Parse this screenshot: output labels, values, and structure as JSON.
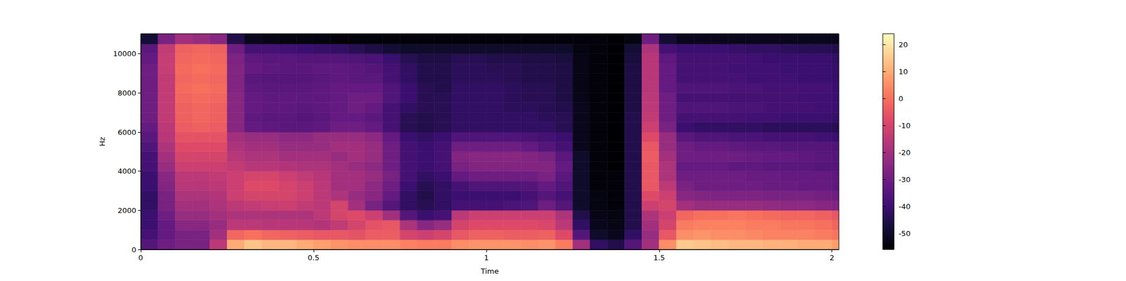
{
  "chart_data": {
    "type": "heatmap",
    "x_label": "Time",
    "y_label": "Hz",
    "xlim": [
      0,
      2.02
    ],
    "ylim": [
      0,
      11025
    ],
    "xticks": [
      0,
      0.5,
      1,
      1.5,
      2
    ],
    "yticks": [
      0,
      2000,
      4000,
      6000,
      8000,
      10000
    ],
    "x_bins": [
      0,
      0.05,
      0.1,
      0.15,
      0.2,
      0.25,
      0.3,
      0.35,
      0.4,
      0.45,
      0.5,
      0.55,
      0.6,
      0.65,
      0.7,
      0.75,
      0.8,
      0.85,
      0.9,
      0.95,
      1.0,
      1.05,
      1.1,
      1.15,
      1.2,
      1.25,
      1.3,
      1.35,
      1.4,
      1.45,
      1.5,
      1.55,
      1.6,
      1.65,
      1.7,
      1.75,
      1.8,
      1.85,
      1.9,
      1.95,
      2.0,
      2.02
    ],
    "y_bins": [
      0,
      500,
      1000,
      1500,
      2000,
      2500,
      3000,
      3500,
      4000,
      4500,
      5000,
      5500,
      6000,
      6500,
      7000,
      7500,
      8000,
      8500,
      9000,
      9500,
      10000,
      10500,
      11025
    ],
    "cells": [
      [
        -35,
        -30,
        -28,
        -28,
        -15,
        10,
        14,
        12,
        12,
        10,
        8,
        6,
        5,
        5,
        5,
        3,
        2,
        2,
        5,
        6,
        6,
        6,
        5,
        6,
        2,
        -20,
        -42,
        -45,
        -35,
        -20,
        5,
        15,
        14,
        13,
        12,
        12,
        11,
        11,
        10,
        10,
        8
      ],
      [
        -38,
        -32,
        -28,
        -28,
        -20,
        -2,
        0,
        -2,
        -3,
        -4,
        -5,
        -5,
        -6,
        -4,
        -4,
        -10,
        -12,
        -10,
        -5,
        -3,
        -3,
        -4,
        -4,
        -3,
        -8,
        -35,
        -50,
        -52,
        -42,
        -22,
        -5,
        5,
        6,
        5,
        5,
        4,
        3,
        3,
        3,
        2,
        1
      ],
      [
        -40,
        -32,
        -25,
        -25,
        -22,
        -15,
        -15,
        -16,
        -16,
        -16,
        -17,
        -14,
        -10,
        -6,
        -5,
        -18,
        -25,
        -22,
        -10,
        -8,
        -8,
        -8,
        -8,
        -9,
        -15,
        -42,
        -52,
        -53,
        -45,
        -20,
        -10,
        2,
        3,
        3,
        3,
        2,
        2,
        1,
        1,
        0,
        -2
      ],
      [
        -40,
        -30,
        -22,
        -22,
        -20,
        -18,
        -18,
        -18,
        -18,
        -18,
        -15,
        -10,
        -8,
        -12,
        -20,
        -35,
        -40,
        -38,
        -15,
        -12,
        -12,
        -12,
        -12,
        -12,
        -18,
        -45,
        -53,
        -54,
        -45,
        -18,
        -12,
        -2,
        0,
        0,
        1,
        0,
        -1,
        -2,
        -2,
        -3,
        -5
      ],
      [
        -42,
        -28,
        -20,
        -20,
        -18,
        -15,
        -14,
        -13,
        -12,
        -14,
        -15,
        -10,
        -20,
        -28,
        -35,
        -42,
        -44,
        -42,
        -38,
        -38,
        -38,
        -37,
        -36,
        -30,
        -35,
        -50,
        -54,
        -55,
        -45,
        -12,
        -10,
        -20,
        -22,
        -22,
        -22,
        -22,
        -23,
        -24,
        -24,
        -25,
        -26
      ],
      [
        -42,
        -28,
        -18,
        -18,
        -17,
        -12,
        -10,
        -10,
        -10,
        -12,
        -15,
        -18,
        -22,
        -25,
        -32,
        -42,
        -45,
        -42,
        -40,
        -40,
        -40,
        -40,
        -38,
        -35,
        -38,
        -50,
        -54,
        -55,
        -45,
        -8,
        -12,
        -25,
        -26,
        -27,
        -27,
        -27,
        -28,
        -28,
        -28,
        -29,
        -30
      ],
      [
        -40,
        -26,
        -16,
        -16,
        -15,
        -12,
        -8,
        -8,
        -10,
        -12,
        -15,
        -20,
        -20,
        -24,
        -30,
        -40,
        -44,
        -42,
        -38,
        -36,
        -36,
        -36,
        -35,
        -32,
        -36,
        -50,
        -55,
        -55,
        -45,
        -5,
        -15,
        -28,
        -30,
        -30,
        -30,
        -30,
        -31,
        -31,
        -32,
        -32,
        -33
      ],
      [
        -40,
        -25,
        -15,
        -15,
        -14,
        -12,
        -10,
        -10,
        -12,
        -14,
        -16,
        -20,
        -20,
        -22,
        -28,
        -38,
        -42,
        -40,
        -32,
        -30,
        -30,
        -30,
        -30,
        -28,
        -34,
        -50,
        -55,
        -55,
        -45,
        -5,
        -18,
        -30,
        -30,
        -30,
        -30,
        -31,
        -31,
        -32,
        -32,
        -32,
        -33
      ],
      [
        -38,
        -22,
        -12,
        -12,
        -12,
        -14,
        -16,
        -16,
        -17,
        -18,
        -18,
        -20,
        -22,
        -24,
        -30,
        -38,
        -40,
        -38,
        -28,
        -26,
        -26,
        -26,
        -26,
        -26,
        -32,
        -50,
        -55,
        -56,
        -45,
        -5,
        -18,
        -32,
        -32,
        -32,
        -33,
        -33,
        -34,
        -34,
        -34,
        -35,
        -35
      ],
      [
        -38,
        -20,
        -10,
        -10,
        -10,
        -16,
        -18,
        -18,
        -20,
        -20,
        -20,
        -22,
        -20,
        -22,
        -30,
        -38,
        -40,
        -38,
        -26,
        -25,
        -25,
        -25,
        -26,
        -28,
        -34,
        -50,
        -55,
        -56,
        -45,
        -4,
        -20,
        -30,
        -30,
        -30,
        -30,
        -31,
        -32,
        -32,
        -33,
        -34,
        -35
      ],
      [
        -36,
        -18,
        -8,
        -8,
        -8,
        -18,
        -20,
        -20,
        -22,
        -22,
        -22,
        -20,
        -20,
        -22,
        -30,
        -38,
        -40,
        -38,
        -30,
        -30,
        -30,
        -30,
        -32,
        -35,
        -38,
        -52,
        -55,
        -56,
        -45,
        -5,
        -22,
        -30,
        -32,
        -32,
        -33,
        -34,
        -34,
        -35,
        -35,
        -35,
        -36
      ],
      [
        -34,
        -16,
        -6,
        -6,
        -6,
        -20,
        -22,
        -22,
        -24,
        -24,
        -22,
        -22,
        -22,
        -24,
        -32,
        -40,
        -42,
        -40,
        -36,
        -36,
        -36,
        -36,
        -37,
        -38,
        -40,
        -52,
        -55,
        -56,
        -45,
        -8,
        -22,
        -34,
        -36,
        -36,
        -37,
        -37,
        -38,
        -38,
        -38,
        -39,
        -40
      ],
      [
        -32,
        -15,
        -4,
        -3,
        -4,
        -25,
        -32,
        -33,
        -34,
        -34,
        -33,
        -30,
        -30,
        -32,
        -38,
        -44,
        -45,
        -44,
        -42,
        -42,
        -42,
        -42,
        -42,
        -42,
        -44,
        -52,
        -55,
        -56,
        -45,
        -12,
        -28,
        -40,
        -42,
        -42,
        -42,
        -42,
        -43,
        -43,
        -43,
        -43,
        -44
      ],
      [
        -30,
        -14,
        -3,
        -2,
        -3,
        -25,
        -33,
        -34,
        -34,
        -35,
        -34,
        -32,
        -32,
        -34,
        -38,
        -44,
        -45,
        -44,
        -42,
        -42,
        -42,
        -42,
        -42,
        -43,
        -44,
        -52,
        -55,
        -56,
        -45,
        -14,
        -30,
        -38,
        -38,
        -38,
        -38,
        -39,
        -39,
        -40,
        -40,
        -40,
        -41
      ],
      [
        -30,
        -14,
        -3,
        -2,
        -3,
        -25,
        -32,
        -33,
        -33,
        -34,
        -33,
        -32,
        -30,
        -32,
        -38,
        -42,
        -44,
        -44,
        -42,
        -42,
        -42,
        -43,
        -43,
        -44,
        -45,
        -52,
        -55,
        -56,
        -46,
        -15,
        -30,
        -36,
        -36,
        -36,
        -37,
        -37,
        -38,
        -38,
        -38,
        -39,
        -40
      ],
      [
        -30,
        -14,
        -2,
        -1,
        -2,
        -25,
        -32,
        -33,
        -33,
        -33,
        -33,
        -32,
        -30,
        -30,
        -36,
        -40,
        -44,
        -44,
        -42,
        -42,
        -42,
        -43,
        -44,
        -44,
        -46,
        -53,
        -55,
        -56,
        -46,
        -15,
        -30,
        -38,
        -38,
        -38,
        -38,
        -38,
        -38,
        -38,
        -39,
        -39,
        -40
      ],
      [
        -30,
        -14,
        -1,
        0,
        -1,
        -26,
        -33,
        -34,
        -34,
        -34,
        -33,
        -32,
        -32,
        -32,
        -36,
        -40,
        -44,
        -45,
        -42,
        -42,
        -42,
        -43,
        -44,
        -44,
        -46,
        -53,
        -55,
        -56,
        -46,
        -16,
        -32,
        -36,
        -36,
        -36,
        -37,
        -37,
        -38,
        -38,
        -38,
        -38,
        -40
      ],
      [
        -30,
        -14,
        -2,
        -1,
        -2,
        -26,
        -34,
        -35,
        -35,
        -35,
        -34,
        -33,
        -34,
        -34,
        -38,
        -42,
        -45,
        -45,
        -43,
        -43,
        -43,
        -44,
        -45,
        -45,
        -46,
        -53,
        -55,
        -56,
        -46,
        -16,
        -32,
        -38,
        -38,
        -38,
        -38,
        -39,
        -39,
        -39,
        -40,
        -40,
        -41
      ],
      [
        -30,
        -13,
        -1,
        0,
        -1,
        -26,
        -32,
        -33,
        -34,
        -34,
        -33,
        -33,
        -34,
        -35,
        -38,
        -42,
        -45,
        -45,
        -43,
        -43,
        -44,
        -44,
        -45,
        -45,
        -46,
        -53,
        -55,
        -56,
        -46,
        -16,
        -32,
        -38,
        -38,
        -38,
        -39,
        -39,
        -39,
        -40,
        -40,
        -40,
        -41
      ],
      [
        -32,
        -13,
        -2,
        -1,
        -2,
        -27,
        -33,
        -34,
        -34,
        -35,
        -35,
        -35,
        -36,
        -37,
        -40,
        -44,
        -46,
        -46,
        -44,
        -44,
        -45,
        -45,
        -46,
        -46,
        -47,
        -53,
        -55,
        -56,
        -47,
        -16,
        -33,
        -38,
        -38,
        -38,
        -38,
        -39,
        -40,
        -40,
        -40,
        -40,
        -42
      ],
      [
        -34,
        -14,
        -3,
        -2,
        -3,
        -30,
        -38,
        -38,
        -39,
        -40,
        -41,
        -42,
        -44,
        -46,
        -48,
        -50,
        -50,
        -50,
        -50,
        -50,
        -50,
        -50,
        -50,
        -50,
        -50,
        -54,
        -55,
        -56,
        -48,
        -18,
        -38,
        -40,
        -40,
        -40,
        -41,
        -42,
        -42,
        -43,
        -44,
        -44,
        -45
      ],
      [
        -48,
        -28,
        -20,
        -22,
        -25,
        -45,
        -52,
        -53,
        -54,
        -54,
        -54,
        -55,
        -55,
        -55,
        -55,
        -55,
        -55,
        -55,
        -55,
        -55,
        -55,
        -55,
        -55,
        -55,
        -55,
        -55,
        -55,
        -56,
        -54,
        -30,
        -48,
        -52,
        -52,
        -52,
        -52,
        -52,
        -52,
        -52,
        -52,
        -52,
        -52
      ]
    ],
    "colorbar": {
      "lim": [
        -56,
        24
      ],
      "ticks": [
        -50,
        -40,
        -30,
        -20,
        -10,
        0,
        10,
        20
      ]
    }
  }
}
